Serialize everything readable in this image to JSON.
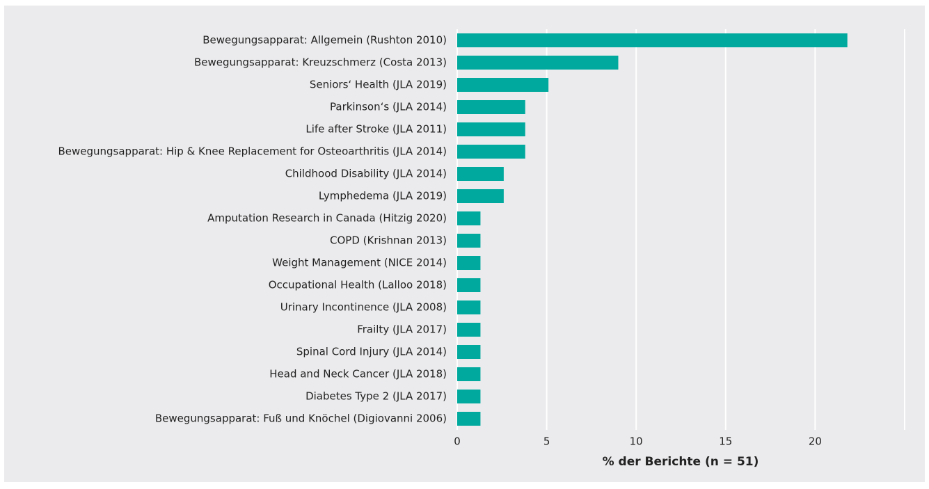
{
  "chart_data": {
    "type": "barh",
    "categories": [
      "Bewegungsapparat: Allgemein (Rushton 2010)",
      "Bewegungsapparat: Kreuzschmerz (Costa 2013)",
      "Seniors‘ Health (JLA 2019)",
      "Parkinson‘s (JLA 2014)",
      "Life after Stroke (JLA 2011)",
      "Bewegungsapparat: Hip & Knee Replacement for Osteoarthritis (JLA 2014)",
      "Childhood Disability (JLA 2014)",
      "Lymphedema (JLA 2019)",
      "Amputation Research in Canada (Hitzig 2020)",
      "COPD (Krishnan 2013)",
      "Weight Management (NICE 2014)",
      "Occupational Health (Lalloo 2018)",
      "Urinary Incontinence (JLA 2008)",
      "Frailty (JLA 2017)",
      "Spinal Cord Injury (JLA 2014)",
      "Head and Neck Cancer (JLA 2018)",
      "Diabetes Type 2 (JLA 2017)",
      "Bewegungsapparat: Fuß und Knöchel (Digiovanni 2006)"
    ],
    "values": [
      21.8,
      9.0,
      5.1,
      3.8,
      3.8,
      3.8,
      2.6,
      2.6,
      1.3,
      1.3,
      1.3,
      1.3,
      1.3,
      1.3,
      1.3,
      1.3,
      1.3,
      1.3
    ],
    "color": "#00a99d",
    "xlabel": "% der Berichte (n = 51)",
    "xlim": [
      0,
      25
    ],
    "xticks": [
      0,
      5,
      10,
      15,
      20
    ],
    "grid": true
  }
}
